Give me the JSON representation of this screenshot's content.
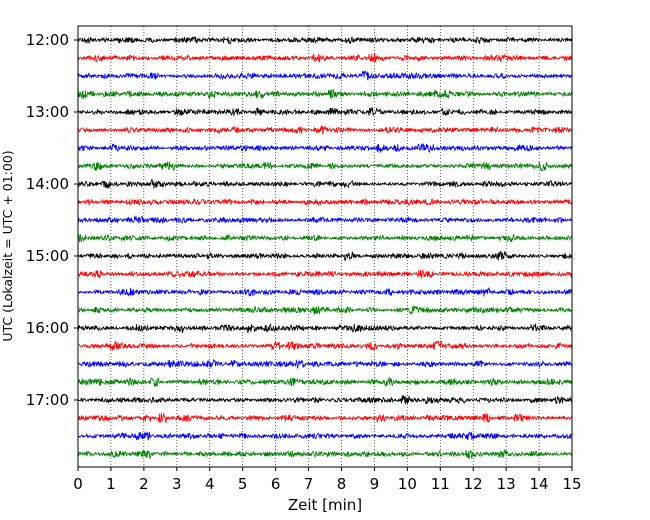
{
  "chart_data": {
    "type": "line",
    "title": "",
    "xlabel": "Zeit  [min]",
    "ylabel": "UTC (Lokalzeit = UTC + 01:00)",
    "xlim": [
      0,
      15
    ],
    "x_ticks": [
      0,
      1,
      2,
      3,
      4,
      5,
      6,
      7,
      8,
      9,
      10,
      11,
      12,
      13,
      14,
      15
    ],
    "y_ticks": [
      "12:00",
      "13:00",
      "14:00",
      "15:00",
      "16:00",
      "17:00"
    ],
    "grid": "vertical dotted",
    "trace_interval_minutes": 15,
    "trace_colors": [
      "#000000",
      "#ff0000",
      "#0000ff",
      "#008000"
    ],
    "series": [
      {
        "start": "12:00",
        "color": "#000000"
      },
      {
        "start": "12:15",
        "color": "#ff0000"
      },
      {
        "start": "12:30",
        "color": "#0000ff"
      },
      {
        "start": "12:45",
        "color": "#008000"
      },
      {
        "start": "13:00",
        "color": "#000000"
      },
      {
        "start": "13:15",
        "color": "#ff0000"
      },
      {
        "start": "13:30",
        "color": "#0000ff"
      },
      {
        "start": "13:45",
        "color": "#008000"
      },
      {
        "start": "14:00",
        "color": "#000000"
      },
      {
        "start": "14:15",
        "color": "#ff0000"
      },
      {
        "start": "14:30",
        "color": "#0000ff"
      },
      {
        "start": "14:45",
        "color": "#008000"
      },
      {
        "start": "15:00",
        "color": "#000000"
      },
      {
        "start": "15:15",
        "color": "#ff0000"
      },
      {
        "start": "15:30",
        "color": "#0000ff"
      },
      {
        "start": "15:45",
        "color": "#008000"
      },
      {
        "start": "16:00",
        "color": "#000000"
      },
      {
        "start": "16:15",
        "color": "#ff0000"
      },
      {
        "start": "16:30",
        "color": "#0000ff"
      },
      {
        "start": "16:45",
        "color": "#008000"
      },
      {
        "start": "17:00",
        "color": "#000000"
      },
      {
        "start": "17:15",
        "color": "#ff0000"
      },
      {
        "start": "17:30",
        "color": "#0000ff"
      },
      {
        "start": "17:45",
        "color": "#008000"
      }
    ]
  }
}
